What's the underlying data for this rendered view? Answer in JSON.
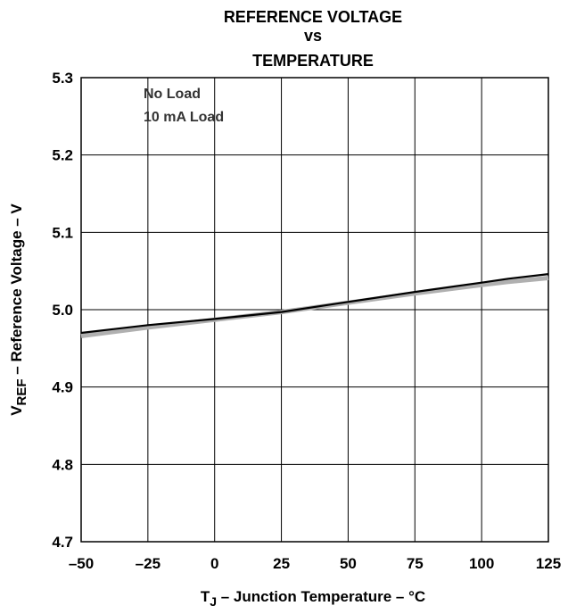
{
  "chart_data": {
    "type": "line",
    "title": [
      "REFERENCE VOLTAGE",
      "vs",
      "TEMPERATURE"
    ],
    "xlabel": {
      "prefix": "T",
      "sub": "J",
      "text": "  –  Junction Temperature – °C"
    },
    "ylabel": {
      "prefix": "V",
      "sub": "REF",
      "text": " – Reference Voltage – V"
    },
    "xlim": [
      -50,
      125
    ],
    "ylim": [
      4.7,
      5.3
    ],
    "xticks": [
      -50,
      -25,
      0,
      25,
      50,
      75,
      100,
      125
    ],
    "xtick_labels": [
      "–50",
      "–25",
      "0",
      "25",
      "50",
      "75",
      "100",
      "125"
    ],
    "yticks": [
      4.7,
      4.8,
      4.9,
      5.0,
      5.1,
      5.2,
      5.3
    ],
    "ytick_labels": [
      "4.7",
      "4.8",
      "4.9",
      "5.0",
      "5.1",
      "5.2",
      "5.3"
    ],
    "grid": true,
    "legend_placement": "top-left",
    "series": [
      {
        "name": "No Load",
        "color": "#000000",
        "x": [
          -50,
          -25,
          0,
          25,
          50,
          75,
          100,
          110,
          125
        ],
        "y": [
          4.97,
          4.98,
          4.988,
          4.997,
          5.01,
          5.023,
          5.035,
          5.04,
          5.046
        ]
      },
      {
        "name": "10 mA Load",
        "color": "#b0b0b0",
        "x": [
          -50,
          -25,
          0,
          25,
          50,
          75,
          100,
          110,
          125
        ],
        "y": [
          4.966,
          4.977,
          4.987,
          4.997,
          5.009,
          5.021,
          5.032,
          5.036,
          5.041
        ]
      }
    ]
  }
}
